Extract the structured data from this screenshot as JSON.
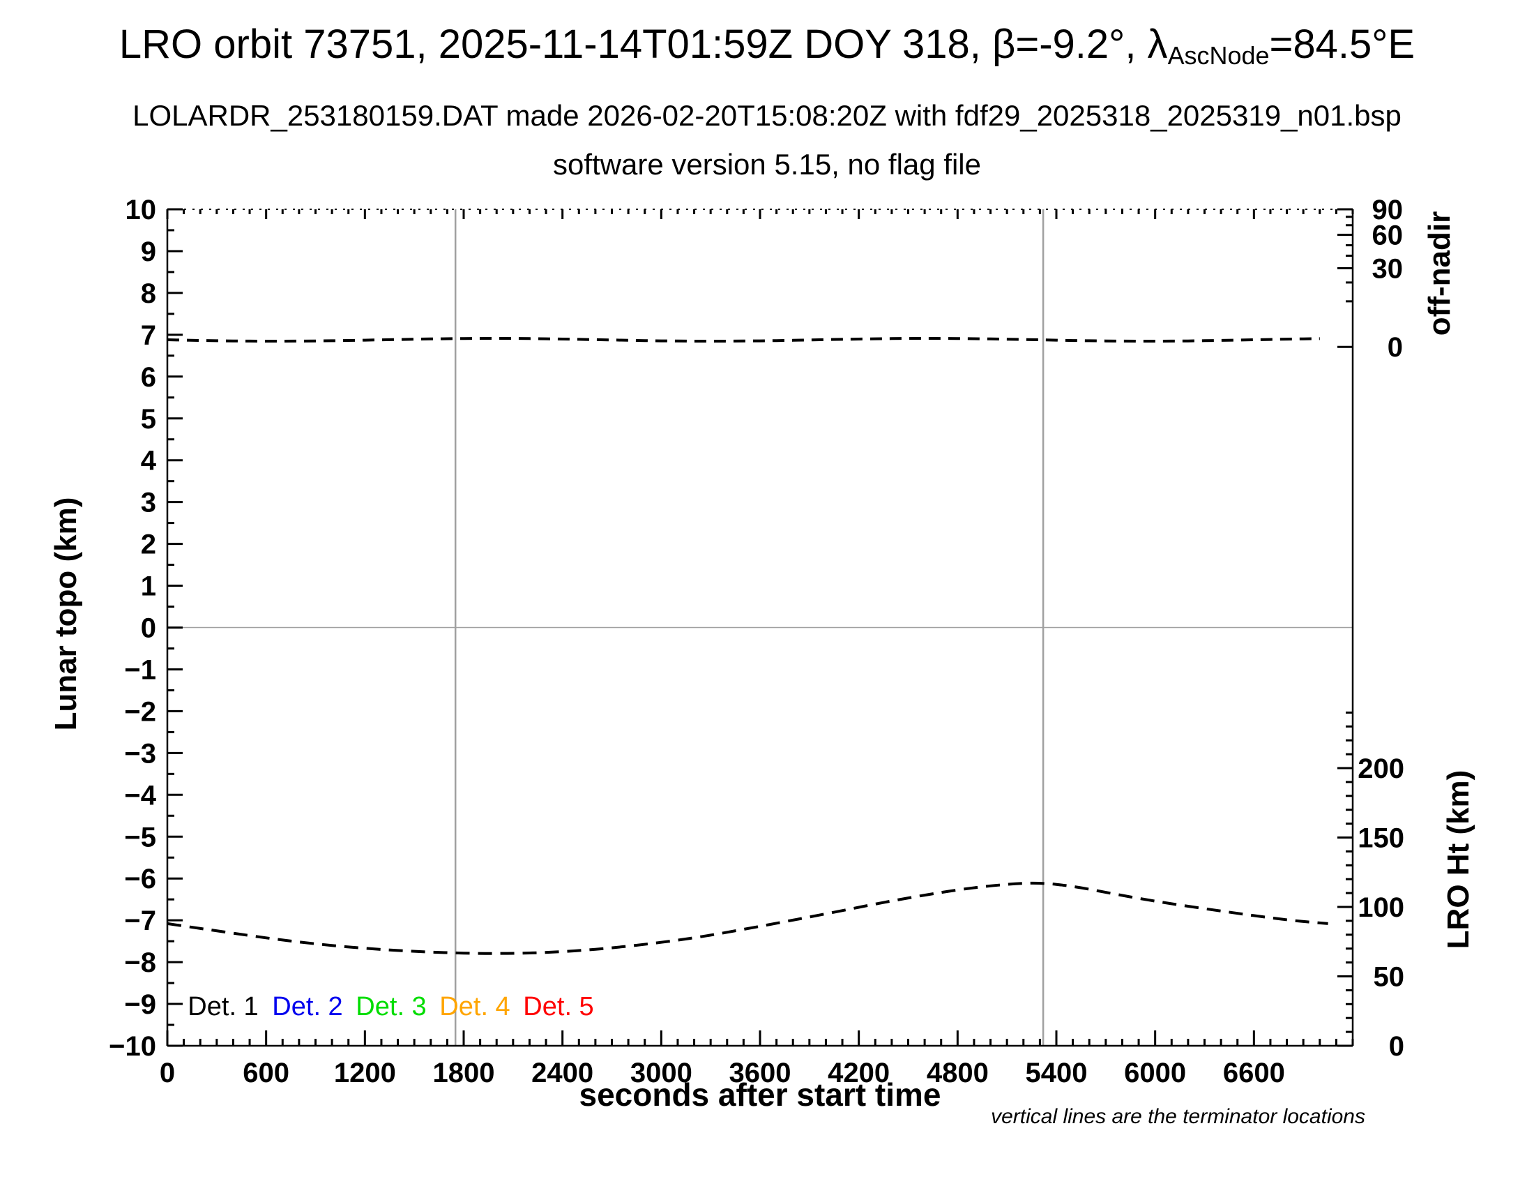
{
  "header": {
    "title_prefix": "LRO orbit 73751, 2025-11-14T01:59Z DOY 318, β=-9.2°, λ",
    "title_subscript": "AscNode",
    "title_suffix": "=84.5°E",
    "subtitle1": "LOLARDR_253180159.DAT made 2026-02-20T15:08:20Z with fdf29_2025318_2025319_n01.bsp",
    "subtitle2": "software version 5.15, no flag file"
  },
  "footnote": "vertical lines are the terminator locations",
  "legend": {
    "items": [
      {
        "label": "Det. 1",
        "color": "#000000"
      },
      {
        "label": "Det. 2",
        "color": "#0000ee"
      },
      {
        "label": "Det. 3",
        "color": "#00dd00"
      },
      {
        "label": "Det. 4",
        "color": "#ffa500"
      },
      {
        "label": "Det. 5",
        "color": "#ff0000"
      }
    ]
  },
  "chart_data": {
    "type": "line",
    "title": "LRO orbit 73751, 2025-11-14T01:59Z DOY 318, beta=-9.2 deg, lambda_AscNode=84.5E",
    "xlabel": "seconds after start time",
    "ylabel_left": "Lunar topo (km)",
    "ylabel_right_top": "off-nadir",
    "ylabel_right_bottom": "LRO Ht (km)",
    "xlim": [
      0,
      7200
    ],
    "ylim_left": [
      -10,
      10
    ],
    "x_major_ticks": [
      0,
      600,
      1200,
      1800,
      2400,
      3000,
      3600,
      4200,
      4800,
      5400,
      6000,
      6600
    ],
    "x_minor_step": 100,
    "left_major_step": 1,
    "left_minor_step": 0.5,
    "off_nadir_axis": {
      "major": [
        {
          "label": "90",
          "topo": 10.0
        },
        {
          "label": "60",
          "topo": 9.39
        },
        {
          "label": "30",
          "topo": 8.59
        },
        {
          "label": "0",
          "topo": 6.71
        }
      ],
      "minor_topo": [
        9.82,
        9.62,
        9.14,
        8.89,
        8.25,
        7.8
      ]
    },
    "lro_ht_axis": {
      "major": [
        {
          "label": "200",
          "km": 200
        },
        {
          "label": "150",
          "km": 150
        },
        {
          "label": "100",
          "km": 100
        },
        {
          "label": "50",
          "km": 50
        },
        {
          "label": "0",
          "km": 0
        }
      ],
      "minor_step_km": 10,
      "max_km": 240
    },
    "terminator_lines_sec": [
      1750,
      5320
    ],
    "zero_topo_gridline": true,
    "grid_color": "#a0a0a0",
    "series": [
      {
        "name": "spacecraft off-nadir angle",
        "axis": "right-top",
        "style": "dashed",
        "color": "#000000",
        "approx_deg": 1.5,
        "topo_equiv": 6.88,
        "t_range": [
          0,
          7050
        ]
      },
      {
        "name": "LRO height above surface",
        "axis": "right-bottom",
        "style": "dashed",
        "color": "#000000",
        "points_t_km": [
          [
            0,
            88
          ],
          [
            400,
            81
          ],
          [
            800,
            74.5
          ],
          [
            1200,
            70
          ],
          [
            1600,
            67.3
          ],
          [
            2000,
            66.2
          ],
          [
            2400,
            67.5
          ],
          [
            2800,
            71.5
          ],
          [
            3200,
            77.5
          ],
          [
            3600,
            86
          ],
          [
            4000,
            95
          ],
          [
            4400,
            104.5
          ],
          [
            4800,
            112.5
          ],
          [
            5100,
            116.5
          ],
          [
            5300,
            117.5
          ],
          [
            5500,
            115
          ],
          [
            5700,
            110.5
          ],
          [
            6000,
            104
          ],
          [
            6400,
            97
          ],
          [
            6800,
            90.5
          ],
          [
            7050,
            88
          ]
        ]
      }
    ]
  }
}
